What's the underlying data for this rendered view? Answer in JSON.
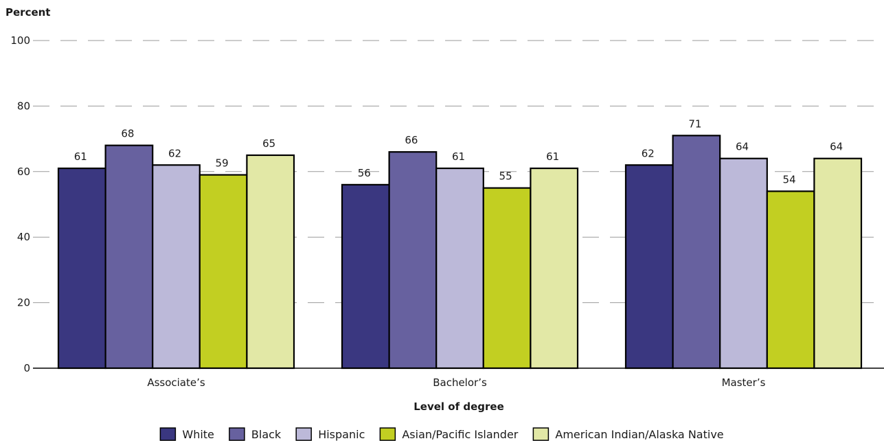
{
  "chart_data": {
    "type": "bar",
    "ylabel": "Percent",
    "xlabel": "Level of degree",
    "ylim": [
      0,
      100
    ],
    "yticks": [
      0,
      20,
      40,
      60,
      80,
      100
    ],
    "grid": "dashed horizontal",
    "legend_position": "bottom",
    "categories": [
      "Associate’s",
      "Bachelor’s",
      "Master’s"
    ],
    "series": [
      {
        "name": "White",
        "color": "#3a3780",
        "values": [
          61,
          56,
          62
        ]
      },
      {
        "name": "Black",
        "color": "#67619f",
        "values": [
          68,
          66,
          71
        ]
      },
      {
        "name": "Hispanic",
        "color": "#bcb9d9",
        "values": [
          62,
          61,
          64
        ]
      },
      {
        "name": "Asian/Pacific Islander",
        "color": "#c2cf22",
        "values": [
          59,
          55,
          54
        ]
      },
      {
        "name": "American Indian/Alaska Native",
        "color": "#e2e8a6",
        "values": [
          65,
          61,
          64
        ]
      }
    ]
  }
}
